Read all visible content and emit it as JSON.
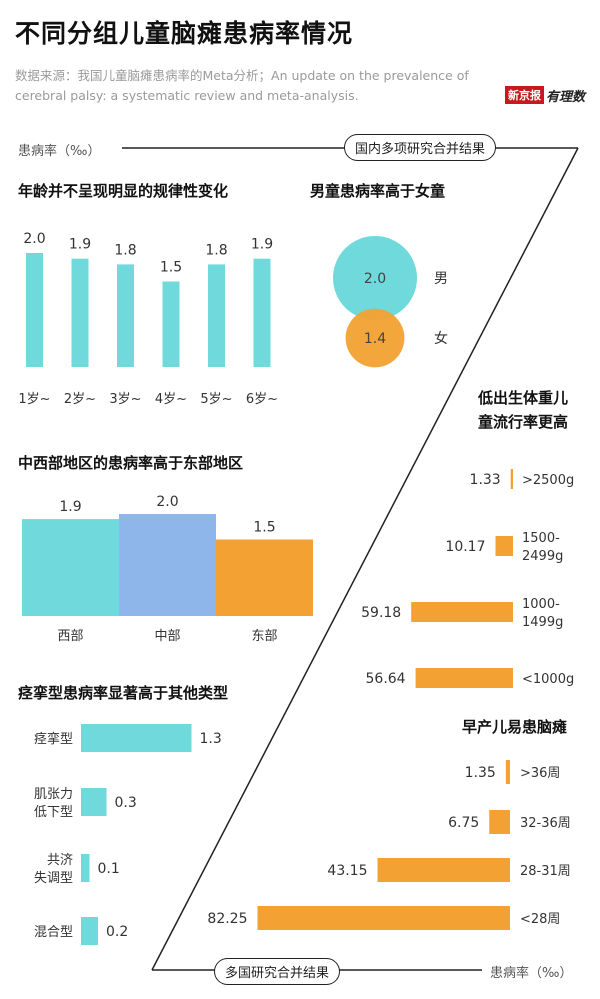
{
  "header": {
    "title": "不同分组儿童脑瘫患病率情况",
    "source": "数据来源：我国儿童脑瘫患病率的Meta分析；An update on the prevalence of cerebral palsy: a systematic review and meta-analysis.",
    "logo_a": "新京报",
    "logo_b": "有理数"
  },
  "labels": {
    "unit_top": "患病率（‰）",
    "pill_top": "国内多项研究合并结果",
    "pill_bottom": "多国研究合并结果",
    "unit_bottom": "患病率（‰）"
  },
  "colors": {
    "cyan": "#6fd9dc",
    "orange": "#f2a132",
    "blue": "#8fb6ea",
    "line": "#222222"
  },
  "chart_data": [
    {
      "type": "bar",
      "title": "年龄并不呈现明显的规律性变化",
      "categories": [
        "1岁~",
        "2岁~",
        "3岁~",
        "4岁~",
        "5岁~",
        "6岁~"
      ],
      "values": [
        2.0,
        1.9,
        1.8,
        1.5,
        1.8,
        1.9
      ],
      "value_labels": [
        "2.0",
        "1.9",
        "1.8",
        "1.5",
        "1.8",
        "1.9"
      ],
      "color": "#6fd9dc"
    },
    {
      "type": "bubble",
      "title": "男童患病率高于女童",
      "categories": [
        "男",
        "女"
      ],
      "values": [
        2.0,
        1.4
      ],
      "value_labels": [
        "2.0",
        "1.4"
      ],
      "colors": [
        "#6fd9dc",
        "#f2a132"
      ]
    },
    {
      "type": "bar",
      "title": "中西部地区的患病率高于东部地区",
      "categories": [
        "西部",
        "中部",
        "东部"
      ],
      "values": [
        1.9,
        2.0,
        1.5
      ],
      "value_labels": [
        "1.9",
        "2.0",
        "1.5"
      ],
      "colors": [
        "#6fd9dc",
        "#8fb6ea",
        "#f2a132"
      ]
    },
    {
      "type": "bar",
      "orientation": "horizontal",
      "title": "痉挛型患病率显著高于其他类型",
      "categories": [
        "痉挛型",
        "肌张力低下型",
        "共济失调型",
        "混合型"
      ],
      "category_lines": [
        [
          "痉挛型"
        ],
        [
          "肌张力",
          "低下型"
        ],
        [
          "共济",
          "失调型"
        ],
        [
          "混合型"
        ]
      ],
      "values": [
        1.3,
        0.3,
        0.1,
        0.2
      ],
      "value_labels": [
        "1.3",
        "0.3",
        "0.1",
        "0.2"
      ],
      "color": "#6fd9dc"
    },
    {
      "type": "bar",
      "orientation": "horizontal",
      "title": "低出生体重儿童流行率更高",
      "title_lines": [
        "低出生体重儿",
        "童流行率更高"
      ],
      "categories": [
        ">2500g",
        "1500-2499g",
        "1000-1499g",
        "<1000g"
      ],
      "category_lines": [
        [
          ">2500g"
        ],
        [
          "1500-",
          "2499g"
        ],
        [
          "1000-",
          "1499g"
        ],
        [
          "<1000g"
        ]
      ],
      "values": [
        1.33,
        10.17,
        59.18,
        56.64
      ],
      "value_labels": [
        "1.33",
        "10.17",
        "59.18",
        "56.64"
      ],
      "color": "#f2a132"
    },
    {
      "type": "bar",
      "orientation": "horizontal",
      "title": "早产儿易患脑瘫",
      "categories": [
        ">36周",
        "32-36周",
        "28-31周",
        "<28周"
      ],
      "values": [
        1.35,
        6.75,
        43.15,
        82.25
      ],
      "value_labels": [
        "1.35",
        "6.75",
        "43.15",
        "82.25"
      ],
      "color": "#f2a132"
    }
  ]
}
